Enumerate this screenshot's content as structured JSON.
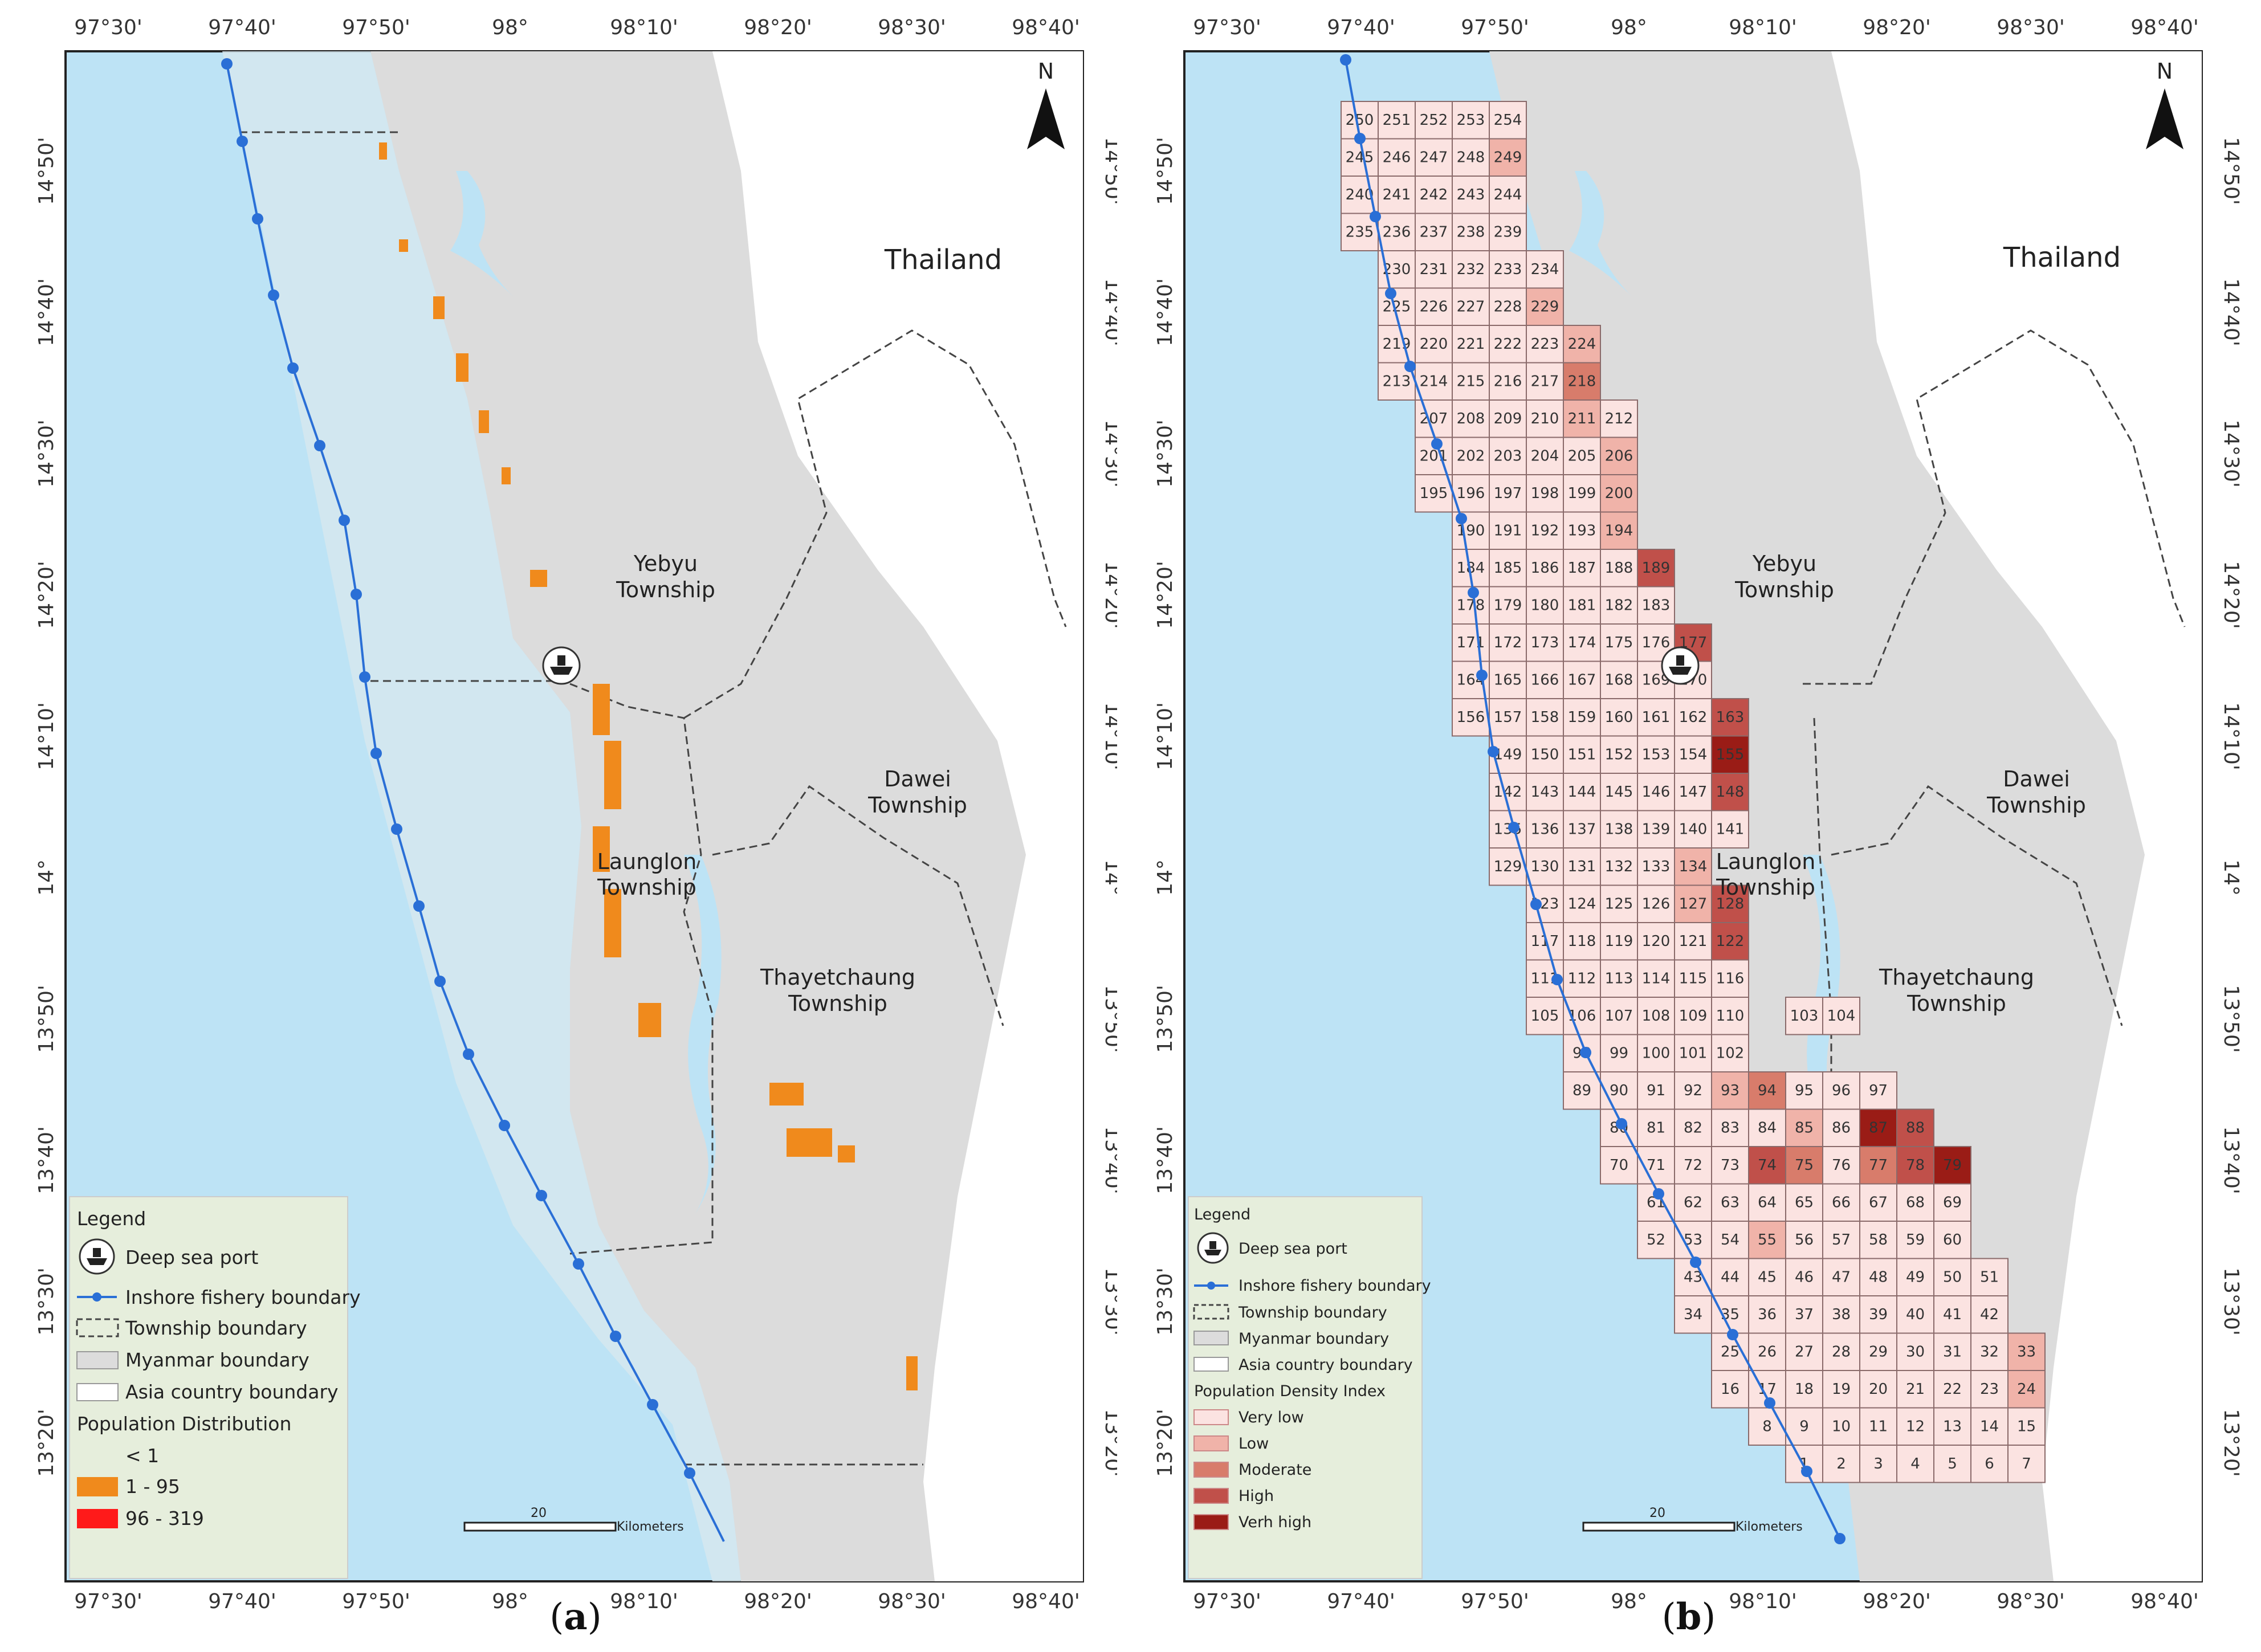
{
  "panel_a": {
    "caption": "a",
    "top_ticks": [
      "97°30'",
      "97°40'",
      "97°50'",
      "98°",
      "98°10'",
      "98°20'",
      "98°30'",
      "98°40'"
    ],
    "bottom_ticks": [
      "97°30'",
      "97°40'",
      "97°50'",
      "98°",
      "98°10'",
      "98°20'",
      "98°30'",
      "98°40'"
    ],
    "left_ticks": [
      "14°50'",
      "14°40'",
      "14°30'",
      "14°20'",
      "14°10'",
      "14°",
      "13°50'",
      "13°40'",
      "13°30'",
      "13°20'"
    ],
    "right_ticks": [
      "14°50'",
      "14°40'",
      "14°30'",
      "14°20'",
      "14°10'",
      "14°",
      "13°50'",
      "13°40'",
      "13°30'",
      "13°20'"
    ],
    "north": "N",
    "labels": {
      "thailand": "Thailand",
      "yebyu_1": "Yebyu",
      "yebyu_2": "Township",
      "dawei_1": "Dawei",
      "dawei_2": "Township",
      "launglon_1": "Launglon",
      "launglon_2": "Township",
      "thayet_1": "Thayetchaung",
      "thayet_2": "Township"
    },
    "scale": {
      "value": "20",
      "unit": "Kilometers"
    },
    "legend": {
      "title": "Legend",
      "deep_sea_port": "Deep sea port",
      "inshore": "Inshore fishery boundary",
      "township": "Township boundary",
      "myanmar": "Myanmar boundary",
      "asia": "Asia country boundary",
      "pop_title": "Population Distribution",
      "class1": "< 1",
      "class2": "1 - 95",
      "class3": "96 - 319"
    }
  },
  "panel_b": {
    "caption": "b",
    "top_ticks": [
      "97°30'",
      "97°40'",
      "97°50'",
      "98°",
      "98°10'",
      "98°20'",
      "98°30'",
      "98°40'"
    ],
    "bottom_ticks": [
      "97°30'",
      "97°40'",
      "97°50'",
      "98°",
      "98°10'",
      "98°20'",
      "98°30'",
      "98°40'"
    ],
    "left_ticks": [
      "14°50'",
      "14°40'",
      "14°30'",
      "14°20'",
      "14°10'",
      "14°",
      "13°50'",
      "13°40'",
      "13°30'",
      "13°20'"
    ],
    "right_ticks": [
      "14°50'",
      "14°40'",
      "14°30'",
      "14°20'",
      "14°10'",
      "14°",
      "13°50'",
      "13°40'",
      "13°30'",
      "13°20'"
    ],
    "north": "N",
    "labels": {
      "thailand": "Thailand",
      "yebyu_1": "Yebyu",
      "yebyu_2": "Township",
      "dawei_1": "Dawei",
      "dawei_2": "Township",
      "launglon_1": "Launglon",
      "launglon_2": "Township",
      "thayet_1": "Thayetchaung",
      "thayet_2": "Township"
    },
    "scale": {
      "value": "20",
      "unit": "Kilometers"
    },
    "legend": {
      "title": "Legend",
      "deep_sea_port": "Deep sea port",
      "inshore": "Inshore fishery boundary",
      "township": "Township boundary",
      "myanmar": "Myanmar boundary",
      "asia": "Asia country boundary",
      "pdi_title": "Population Density Index",
      "very_low": "Very low",
      "low": "Low",
      "moderate": "Moderate",
      "high": "High",
      "very_high": "Verh high"
    },
    "colors": {
      "very_low": "#fbe3e1",
      "low": "#f0b3a9",
      "moderate": "#d87c6b",
      "high": "#c0504a",
      "very_high": "#9a1c16"
    },
    "grid_rows": [
      {
        "start": 250,
        "end": 254,
        "col": 0
      },
      {
        "start": 245,
        "end": 249,
        "col": 0
      },
      {
        "start": 240,
        "end": 244,
        "col": 0
      },
      {
        "start": 235,
        "end": 239,
        "col": 0
      },
      {
        "start": 230,
        "end": 234,
        "col": 1
      },
      {
        "start": 225,
        "end": 229,
        "col": 1
      },
      {
        "start": 219,
        "end": 224,
        "col": 1
      },
      {
        "start": 213,
        "end": 218,
        "col": 1
      },
      {
        "start": 207,
        "end": 212,
        "col": 2
      },
      {
        "start": 201,
        "end": 206,
        "col": 2
      },
      {
        "start": 195,
        "end": 200,
        "col": 2
      },
      {
        "start": 190,
        "end": 194,
        "col": 3
      },
      {
        "start": 184,
        "end": 189,
        "col": 3
      },
      {
        "start": 178,
        "end": 183,
        "col": 3
      },
      {
        "start": 171,
        "end": 177,
        "col": 3
      },
      {
        "start": 164,
        "end": 170,
        "col": 3
      },
      {
        "start": 156,
        "end": 163,
        "col": 3
      },
      {
        "start": 149,
        "end": 155,
        "col": 4
      },
      {
        "start": 142,
        "end": 148,
        "col": 4
      },
      {
        "start": 135,
        "end": 141,
        "col": 4
      },
      {
        "start": 129,
        "end": 134,
        "col": 4
      },
      {
        "start": 123,
        "end": 128,
        "col": 5
      },
      {
        "start": 117,
        "end": 122,
        "col": 5
      },
      {
        "start": 111,
        "end": 116,
        "col": 5
      },
      {
        "start": 105,
        "end": 110,
        "col": 5
      },
      {
        "start": 98,
        "end": 102,
        "col": 6
      },
      {
        "start": 89,
        "end": 97,
        "col": 6
      },
      {
        "start": 80,
        "end": 88,
        "col": 7
      },
      {
        "start": 70,
        "end": 79,
        "col": 7
      },
      {
        "start": 61,
        "end": 69,
        "col": 8
      },
      {
        "start": 52,
        "end": 60,
        "col": 8
      },
      {
        "start": 43,
        "end": 51,
        "col": 9
      },
      {
        "start": 34,
        "end": 42,
        "col": 9
      },
      {
        "start": 25,
        "end": 33,
        "col": 10
      },
      {
        "start": 16,
        "end": 24,
        "col": 10
      },
      {
        "start": 8,
        "end": 15,
        "col": 11
      },
      {
        "start": 1,
        "end": 7,
        "col": 12
      }
    ],
    "extra_cells": [
      {
        "n": 103,
        "row": 24,
        "col": 12
      },
      {
        "n": 104,
        "row": 24,
        "col": 13
      }
    ],
    "cell_classes": {
      "249": "low",
      "229": "low",
      "224": "low",
      "218": "moderate",
      "211": "low",
      "206": "low",
      "200": "low",
      "194": "low",
      "189": "high",
      "177": "high",
      "163": "high",
      "155": "very_high",
      "148": "high",
      "134": "low",
      "127": "low",
      "128": "high",
      "122": "high",
      "93": "low",
      "94": "moderate",
      "85": "low",
      "87": "very_high",
      "88": "high",
      "74": "high",
      "75": "moderate",
      "77": "moderate",
      "78": "high",
      "79": "very_high",
      "55": "low",
      "33": "low",
      "24": "low"
    }
  }
}
